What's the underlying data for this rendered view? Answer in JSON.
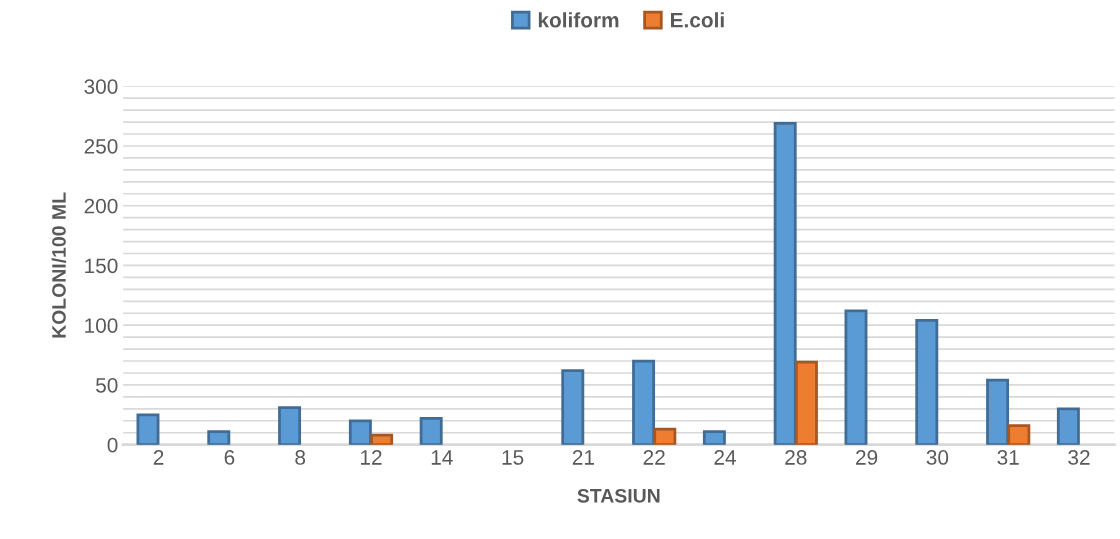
{
  "chart_data": {
    "type": "bar",
    "xlabel": "STASIUN",
    "ylabel": "KOLONI/100 ML",
    "categories": [
      "2",
      "6",
      "8",
      "12",
      "14",
      "15",
      "21",
      "22",
      "24",
      "28",
      "29",
      "30",
      "31",
      "32"
    ],
    "series": [
      {
        "name": "koliform",
        "color": "#5b9bd5",
        "values": [
          25,
          11,
          31,
          20,
          22,
          null,
          62,
          70,
          11,
          269,
          112,
          104,
          54,
          30
        ]
      },
      {
        "name": "E.coli",
        "color": "#ed7d31",
        "values": [
          null,
          null,
          null,
          8,
          null,
          null,
          null,
          13,
          null,
          69,
          null,
          null,
          16,
          null
        ]
      }
    ],
    "ylim": [
      0,
      300
    ],
    "yticks": [
      0,
      {
        "value": 10,
        "label": null
      },
      {
        "value": 20,
        "label": null
      },
      {
        "value": 30,
        "label": null
      },
      {
        "value": 40,
        "label": null
      },
      50,
      {
        "value": 60,
        "label": null
      },
      {
        "value": 70,
        "label": null
      },
      {
        "value": 80,
        "label": null
      },
      {
        "value": 90,
        "label": null
      },
      100,
      {
        "value": 110,
        "label": null
      },
      {
        "value": 120,
        "label": null
      },
      {
        "value": 130,
        "label": null
      },
      {
        "value": 140,
        "label": null
      },
      150,
      {
        "value": 160,
        "label": null
      },
      {
        "value": 170,
        "label": null
      },
      {
        "value": 180,
        "label": null
      },
      {
        "value": 190,
        "label": null
      },
      200,
      {
        "value": 210,
        "label": null
      },
      {
        "value": 220,
        "label": null
      },
      {
        "value": 230,
        "label": null
      },
      {
        "value": 240,
        "label": null
      },
      250,
      {
        "value": 260,
        "label": null
      },
      {
        "value": 270,
        "label": null
      },
      {
        "value": 280,
        "label": null
      },
      {
        "value": 290,
        "label": null
      },
      300
    ],
    "grid": "y",
    "legend": "top"
  }
}
